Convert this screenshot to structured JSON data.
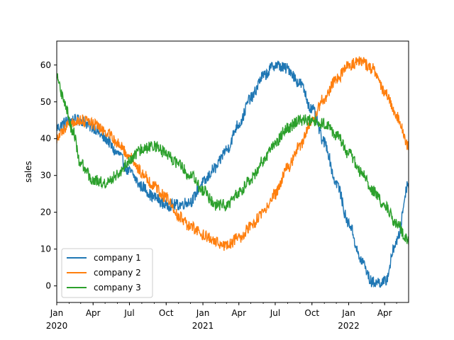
{
  "chart_data": {
    "type": "line",
    "ylabel": "sales",
    "xlabel": "",
    "ylim": [
      -4.5,
      66.5
    ],
    "xlim": [
      "2020-01-01",
      "2022-05-31"
    ],
    "yticks": [
      0,
      10,
      20,
      30,
      40,
      50,
      60
    ],
    "legend_position": "lower left",
    "grid": false,
    "x_major_ticks": [
      {
        "date": "2020-01-01",
        "label": "Jan",
        "sublabel": "2020"
      },
      {
        "date": "2020-04-01",
        "label": "Apr",
        "sublabel": ""
      },
      {
        "date": "2020-07-01",
        "label": "Jul",
        "sublabel": ""
      },
      {
        "date": "2020-10-01",
        "label": "Oct",
        "sublabel": ""
      },
      {
        "date": "2021-01-01",
        "label": "Jan",
        "sublabel": "2021"
      },
      {
        "date": "2021-04-01",
        "label": "Apr",
        "sublabel": ""
      },
      {
        "date": "2021-07-01",
        "label": "Jul",
        "sublabel": ""
      },
      {
        "date": "2021-10-01",
        "label": "Oct",
        "sublabel": ""
      },
      {
        "date": "2022-01-01",
        "label": "Jan",
        "sublabel": "2022"
      },
      {
        "date": "2022-04-01",
        "label": "Apr",
        "sublabel": ""
      }
    ],
    "series": [
      {
        "name": "company 1",
        "color": "#1f77b4",
        "noise": 1.6,
        "points": [
          [
            "2020-01-01",
            43
          ],
          [
            "2020-02-01",
            45
          ],
          [
            "2020-03-01",
            45
          ],
          [
            "2020-04-01",
            43
          ],
          [
            "2020-05-01",
            40
          ],
          [
            "2020-06-01",
            36
          ],
          [
            "2020-07-01",
            31
          ],
          [
            "2020-08-01",
            27
          ],
          [
            "2020-09-01",
            24
          ],
          [
            "2020-10-01",
            22
          ],
          [
            "2020-11-01",
            22
          ],
          [
            "2020-12-01",
            23
          ],
          [
            "2021-01-01",
            28
          ],
          [
            "2021-02-01",
            32
          ],
          [
            "2021-03-01",
            37
          ],
          [
            "2021-04-01",
            44
          ],
          [
            "2021-05-01",
            51
          ],
          [
            "2021-06-01",
            57
          ],
          [
            "2021-07-01",
            60
          ],
          [
            "2021-08-01",
            59
          ],
          [
            "2021-09-01",
            55
          ],
          [
            "2021-10-01",
            48
          ],
          [
            "2021-11-01",
            39
          ],
          [
            "2021-12-01",
            28
          ],
          [
            "2022-01-01",
            17
          ],
          [
            "2022-02-01",
            7
          ],
          [
            "2022-03-01",
            1
          ],
          [
            "2022-04-01",
            1
          ],
          [
            "2022-05-01",
            12
          ],
          [
            "2022-05-31",
            28
          ]
        ]
      },
      {
        "name": "company 2",
        "color": "#ff7f0e",
        "noise": 1.6,
        "points": [
          [
            "2020-01-01",
            40
          ],
          [
            "2020-02-01",
            44
          ],
          [
            "2020-03-01",
            45
          ],
          [
            "2020-04-01",
            44
          ],
          [
            "2020-05-01",
            42
          ],
          [
            "2020-06-01",
            39
          ],
          [
            "2020-07-01",
            35
          ],
          [
            "2020-08-01",
            31
          ],
          [
            "2020-09-01",
            27
          ],
          [
            "2020-10-01",
            24
          ],
          [
            "2020-11-01",
            19
          ],
          [
            "2020-12-01",
            16
          ],
          [
            "2021-01-01",
            14
          ],
          [
            "2021-02-01",
            12
          ],
          [
            "2021-03-01",
            11
          ],
          [
            "2021-04-01",
            13
          ],
          [
            "2021-05-01",
            16
          ],
          [
            "2021-06-01",
            20
          ],
          [
            "2021-07-01",
            25
          ],
          [
            "2021-08-01",
            32
          ],
          [
            "2021-09-01",
            38
          ],
          [
            "2021-10-01",
            45
          ],
          [
            "2021-11-01",
            51
          ],
          [
            "2021-12-01",
            56
          ],
          [
            "2022-01-01",
            60
          ],
          [
            "2022-02-01",
            61
          ],
          [
            "2022-03-01",
            59
          ],
          [
            "2022-04-01",
            53
          ],
          [
            "2022-05-01",
            46
          ],
          [
            "2022-05-31",
            38
          ]
        ]
      },
      {
        "name": "company 3",
        "color": "#2ca02c",
        "noise": 1.6,
        "points": [
          [
            "2020-01-01",
            57
          ],
          [
            "2020-01-20",
            50
          ],
          [
            "2020-02-10",
            42
          ],
          [
            "2020-03-01",
            33
          ],
          [
            "2020-04-01",
            29
          ],
          [
            "2020-05-01",
            28
          ],
          [
            "2020-06-01",
            30
          ],
          [
            "2020-07-01",
            34
          ],
          [
            "2020-08-01",
            37
          ],
          [
            "2020-09-01",
            38
          ],
          [
            "2020-10-01",
            36
          ],
          [
            "2020-11-01",
            33
          ],
          [
            "2020-12-01",
            30
          ],
          [
            "2021-01-01",
            26
          ],
          [
            "2021-02-01",
            22
          ],
          [
            "2021-03-01",
            22
          ],
          [
            "2021-04-01",
            25
          ],
          [
            "2021-05-01",
            29
          ],
          [
            "2021-06-01",
            34
          ],
          [
            "2021-07-01",
            39
          ],
          [
            "2021-08-01",
            43
          ],
          [
            "2021-09-01",
            45
          ],
          [
            "2021-10-01",
            45
          ],
          [
            "2021-11-01",
            44
          ],
          [
            "2021-12-01",
            41
          ],
          [
            "2022-01-01",
            36
          ],
          [
            "2022-02-01",
            31
          ],
          [
            "2022-03-01",
            26
          ],
          [
            "2022-04-01",
            22
          ],
          [
            "2022-05-01",
            17
          ],
          [
            "2022-05-31",
            12
          ]
        ]
      }
    ]
  }
}
